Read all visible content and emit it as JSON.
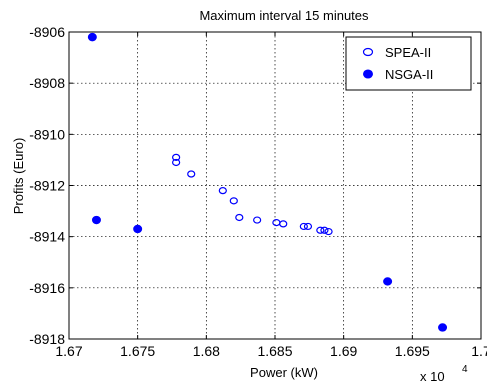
{
  "chart_data": {
    "type": "scatter",
    "title": "Maximum interval 15 minutes",
    "xlabel": "Power (kW)",
    "ylabel": "Profits (Euro)",
    "x_exponent_label": "x 10",
    "x_exponent_power": "4",
    "xlim": [
      16700,
      17000
    ],
    "ylim": [
      -8918,
      -8906
    ],
    "x_ticks": [
      16700,
      16750,
      16800,
      16850,
      16900,
      16950,
      17000
    ],
    "x_tick_labels": [
      "1.67",
      "1.675",
      "1.68",
      "1.685",
      "1.69",
      "1.695",
      "1.7"
    ],
    "y_ticks": [
      -8918,
      -8916,
      -8914,
      -8912,
      -8910,
      -8908,
      -8906
    ],
    "y_tick_labels": [
      "-8918",
      "-8916",
      "-8914",
      "-8912",
      "-8910",
      "-8908",
      "-8906"
    ],
    "grid": true,
    "legend_position": "top-right",
    "colors": {
      "series": "#0000ff",
      "axis": "#000000",
      "grid": "#000000"
    },
    "series": [
      {
        "name": "SPEA-II",
        "marker": "open-circle",
        "points": [
          [
            16778,
            -8910.9
          ],
          [
            16778,
            -8911.1
          ],
          [
            16789,
            -8911.55
          ],
          [
            16812,
            -8912.2
          ],
          [
            16820,
            -8912.6
          ],
          [
            16824,
            -8913.25
          ],
          [
            16837,
            -8913.35
          ],
          [
            16851,
            -8913.45
          ],
          [
            16856,
            -8913.5
          ],
          [
            16871,
            -8913.6
          ],
          [
            16874,
            -8913.6
          ],
          [
            16883,
            -8913.75
          ],
          [
            16886,
            -8913.75
          ],
          [
            16889,
            -8913.8
          ]
        ]
      },
      {
        "name": "NSGA-II",
        "marker": "filled-circle",
        "points": [
          [
            16717,
            -8906.2
          ],
          [
            16720,
            -8913.35
          ],
          [
            16750,
            -8913.7
          ],
          [
            16932,
            -8915.75
          ],
          [
            16972,
            -8917.55
          ]
        ]
      }
    ]
  }
}
